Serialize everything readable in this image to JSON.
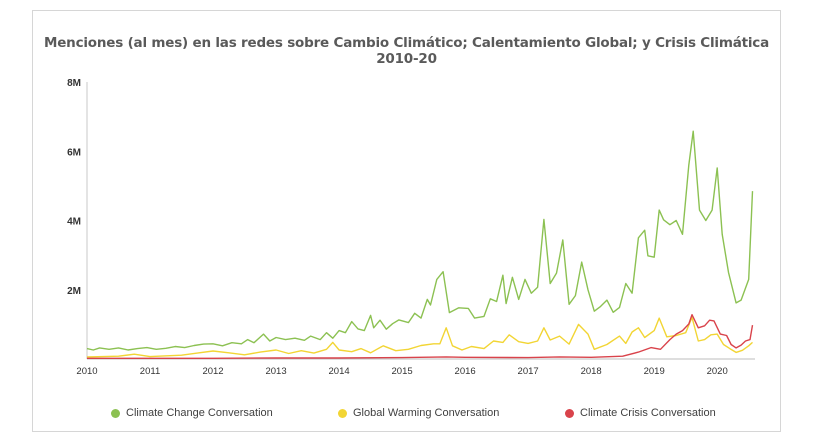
{
  "chart_data": {
    "type": "line",
    "title": "Menciones (al mes) en las redes sobre Cambio Climático; Calentamiento Global; y Crisis Climática 2010-20",
    "xlabel": "",
    "ylabel": "",
    "xlim": [
      2010,
      2020.6
    ],
    "ylim": [
      0,
      8000000
    ],
    "y_ticks": [
      {
        "value": 2000000,
        "label": "2M"
      },
      {
        "value": 4000000,
        "label": "4M"
      },
      {
        "value": 6000000,
        "label": "6M"
      },
      {
        "value": 8000000,
        "label": "8M"
      }
    ],
    "x_ticks": [
      "2010",
      "2011",
      "2012",
      "2013",
      "2014",
      "2015",
      "2016",
      "2017",
      "2018",
      "2019",
      "2020"
    ],
    "grid": false,
    "legend": "bottom",
    "series": [
      {
        "name": "Climate Change Conversation",
        "color": "#8cc152",
        "points": [
          [
            2010.0,
            300000
          ],
          [
            2010.1,
            260000
          ],
          [
            2010.2,
            320000
          ],
          [
            2010.35,
            280000
          ],
          [
            2010.5,
            320000
          ],
          [
            2010.65,
            260000
          ],
          [
            2010.8,
            300000
          ],
          [
            2010.95,
            330000
          ],
          [
            2011.1,
            280000
          ],
          [
            2011.25,
            310000
          ],
          [
            2011.4,
            360000
          ],
          [
            2011.55,
            330000
          ],
          [
            2011.7,
            390000
          ],
          [
            2011.85,
            430000
          ],
          [
            2012.0,
            440000
          ],
          [
            2012.15,
            380000
          ],
          [
            2012.3,
            470000
          ],
          [
            2012.45,
            440000
          ],
          [
            2012.55,
            560000
          ],
          [
            2012.65,
            470000
          ],
          [
            2012.8,
            720000
          ],
          [
            2012.9,
            520000
          ],
          [
            2013.0,
            620000
          ],
          [
            2013.15,
            560000
          ],
          [
            2013.3,
            600000
          ],
          [
            2013.45,
            540000
          ],
          [
            2013.55,
            660000
          ],
          [
            2013.7,
            560000
          ],
          [
            2013.8,
            760000
          ],
          [
            2013.9,
            600000
          ],
          [
            2014.0,
            820000
          ],
          [
            2014.1,
            760000
          ],
          [
            2014.2,
            1080000
          ],
          [
            2014.3,
            870000
          ],
          [
            2014.4,
            820000
          ],
          [
            2014.5,
            1260000
          ],
          [
            2014.55,
            900000
          ],
          [
            2014.65,
            1120000
          ],
          [
            2014.75,
            860000
          ],
          [
            2014.85,
            1020000
          ],
          [
            2014.95,
            1130000
          ],
          [
            2015.1,
            1050000
          ],
          [
            2015.2,
            1320000
          ],
          [
            2015.3,
            1180000
          ],
          [
            2015.4,
            1720000
          ],
          [
            2015.45,
            1560000
          ],
          [
            2015.55,
            2300000
          ],
          [
            2015.65,
            2520000
          ],
          [
            2015.75,
            1340000
          ],
          [
            2015.9,
            1480000
          ],
          [
            2016.05,
            1460000
          ],
          [
            2016.15,
            1180000
          ],
          [
            2016.3,
            1230000
          ],
          [
            2016.4,
            1740000
          ],
          [
            2016.5,
            1660000
          ],
          [
            2016.6,
            2420000
          ],
          [
            2016.65,
            1600000
          ],
          [
            2016.75,
            2360000
          ],
          [
            2016.85,
            1720000
          ],
          [
            2016.95,
            2300000
          ],
          [
            2017.05,
            1900000
          ],
          [
            2017.15,
            2070000
          ],
          [
            2017.25,
            4030000
          ],
          [
            2017.35,
            2180000
          ],
          [
            2017.45,
            2480000
          ],
          [
            2017.55,
            3440000
          ],
          [
            2017.65,
            1580000
          ],
          [
            2017.75,
            1830000
          ],
          [
            2017.85,
            2800000
          ],
          [
            2017.95,
            2000000
          ],
          [
            2018.05,
            1380000
          ],
          [
            2018.15,
            1520000
          ],
          [
            2018.25,
            1700000
          ],
          [
            2018.35,
            1350000
          ],
          [
            2018.45,
            1490000
          ],
          [
            2018.55,
            2180000
          ],
          [
            2018.65,
            1900000
          ],
          [
            2018.75,
            3500000
          ],
          [
            2018.85,
            3720000
          ],
          [
            2018.9,
            2980000
          ],
          [
            2019.0,
            2940000
          ],
          [
            2019.08,
            4300000
          ],
          [
            2019.15,
            4020000
          ],
          [
            2019.25,
            3880000
          ],
          [
            2019.35,
            4000000
          ],
          [
            2019.45,
            3600000
          ],
          [
            2019.55,
            5600000
          ],
          [
            2019.62,
            6580000
          ],
          [
            2019.72,
            4300000
          ],
          [
            2019.82,
            4000000
          ],
          [
            2019.92,
            4300000
          ],
          [
            2020.0,
            5520000
          ],
          [
            2020.08,
            3600000
          ],
          [
            2020.18,
            2500000
          ],
          [
            2020.3,
            1620000
          ],
          [
            2020.38,
            1700000
          ],
          [
            2020.5,
            2300000
          ],
          [
            2020.56,
            4850000
          ]
        ]
      },
      {
        "name": "Global Warming Conversation",
        "color": "#f2d534",
        "points": [
          [
            2010.0,
            60000
          ],
          [
            2010.5,
            80000
          ],
          [
            2010.75,
            140000
          ],
          [
            2011.0,
            70000
          ],
          [
            2011.5,
            110000
          ],
          [
            2011.75,
            170000
          ],
          [
            2012.0,
            230000
          ],
          [
            2012.25,
            180000
          ],
          [
            2012.5,
            120000
          ],
          [
            2012.75,
            200000
          ],
          [
            2013.0,
            260000
          ],
          [
            2013.2,
            160000
          ],
          [
            2013.4,
            240000
          ],
          [
            2013.6,
            170000
          ],
          [
            2013.8,
            280000
          ],
          [
            2013.9,
            480000
          ],
          [
            2014.0,
            260000
          ],
          [
            2014.2,
            210000
          ],
          [
            2014.35,
            300000
          ],
          [
            2014.5,
            180000
          ],
          [
            2014.7,
            380000
          ],
          [
            2014.9,
            240000
          ],
          [
            2015.1,
            280000
          ],
          [
            2015.3,
            390000
          ],
          [
            2015.5,
            440000
          ],
          [
            2015.6,
            440000
          ],
          [
            2015.7,
            900000
          ],
          [
            2015.8,
            380000
          ],
          [
            2015.95,
            260000
          ],
          [
            2016.1,
            360000
          ],
          [
            2016.3,
            300000
          ],
          [
            2016.45,
            520000
          ],
          [
            2016.6,
            480000
          ],
          [
            2016.7,
            700000
          ],
          [
            2016.85,
            500000
          ],
          [
            2017.0,
            450000
          ],
          [
            2017.15,
            520000
          ],
          [
            2017.25,
            900000
          ],
          [
            2017.35,
            550000
          ],
          [
            2017.5,
            660000
          ],
          [
            2017.65,
            430000
          ],
          [
            2017.8,
            1000000
          ],
          [
            2017.95,
            720000
          ],
          [
            2018.05,
            280000
          ],
          [
            2018.25,
            420000
          ],
          [
            2018.45,
            660000
          ],
          [
            2018.55,
            450000
          ],
          [
            2018.65,
            780000
          ],
          [
            2018.75,
            900000
          ],
          [
            2018.85,
            620000
          ],
          [
            2019.0,
            820000
          ],
          [
            2019.08,
            1180000
          ],
          [
            2019.2,
            640000
          ],
          [
            2019.35,
            680000
          ],
          [
            2019.5,
            760000
          ],
          [
            2019.6,
            1200000
          ],
          [
            2019.7,
            520000
          ],
          [
            2019.8,
            560000
          ],
          [
            2019.9,
            700000
          ],
          [
            2020.0,
            720000
          ],
          [
            2020.1,
            420000
          ],
          [
            2020.2,
            300000
          ],
          [
            2020.3,
            190000
          ],
          [
            2020.4,
            250000
          ],
          [
            2020.5,
            380000
          ],
          [
            2020.56,
            480000
          ]
        ]
      },
      {
        "name": "Climate Crisis Conversation",
        "color": "#d9434b",
        "points": [
          [
            2010.0,
            20000
          ],
          [
            2011.0,
            20000
          ],
          [
            2012.0,
            20000
          ],
          [
            2013.0,
            30000
          ],
          [
            2014.0,
            30000
          ],
          [
            2015.0,
            40000
          ],
          [
            2015.7,
            60000
          ],
          [
            2016.0,
            50000
          ],
          [
            2017.0,
            40000
          ],
          [
            2017.5,
            60000
          ],
          [
            2018.0,
            50000
          ],
          [
            2018.5,
            80000
          ],
          [
            2018.75,
            200000
          ],
          [
            2018.95,
            330000
          ],
          [
            2019.1,
            280000
          ],
          [
            2019.25,
            560000
          ],
          [
            2019.35,
            720000
          ],
          [
            2019.45,
            820000
          ],
          [
            2019.55,
            1010000
          ],
          [
            2019.6,
            1280000
          ],
          [
            2019.7,
            900000
          ],
          [
            2019.8,
            960000
          ],
          [
            2019.88,
            1120000
          ],
          [
            2019.95,
            1100000
          ],
          [
            2020.05,
            720000
          ],
          [
            2020.15,
            680000
          ],
          [
            2020.22,
            420000
          ],
          [
            2020.3,
            320000
          ],
          [
            2020.38,
            400000
          ],
          [
            2020.45,
            520000
          ],
          [
            2020.52,
            560000
          ],
          [
            2020.56,
            980000
          ]
        ]
      }
    ]
  }
}
